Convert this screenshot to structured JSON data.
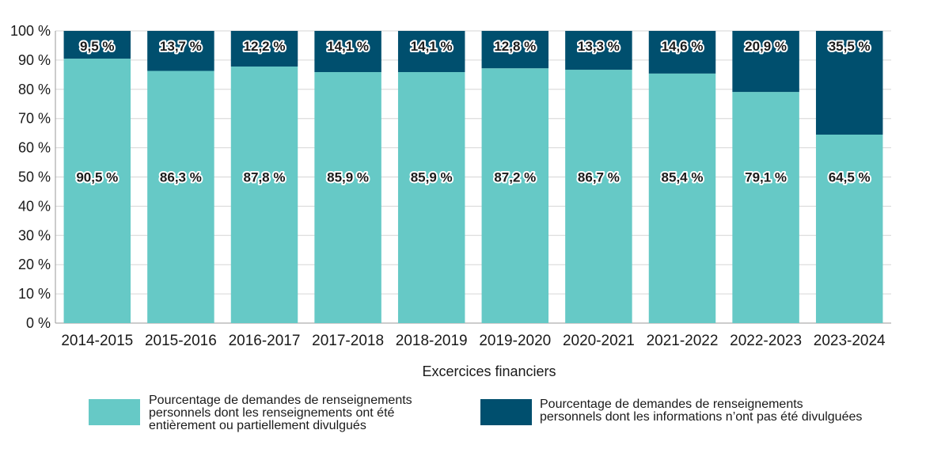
{
  "chart_data": {
    "type": "bar",
    "stacked": true,
    "title": "",
    "xlabel": "Excercices financiers",
    "ylabel": "",
    "ylim": [
      0,
      100
    ],
    "yticks": [
      "0 %",
      "10 %",
      "20 %",
      "30 %",
      "40 %",
      "50 %",
      "60 %",
      "70 %",
      "80 %",
      "90 %",
      "100 %"
    ],
    "categories": [
      "2014-2015",
      "2015-2016",
      "2016-2017",
      "2017-2018",
      "2018-2019",
      "2019-2020",
      "2020-2021",
      "2021-2022",
      "2022-2023",
      "2023-2024"
    ],
    "series": [
      {
        "name": "Pourcentage de demandes de renseignements personnels dont les renseignements ont été entièrement ou partiellement divulgués",
        "legend_lines": [
          "Pourcentage de demandes de renseignements",
          "personnels dont les renseignements ont été",
          "entièrement ou partiellement divulgués"
        ],
        "color": "#66c9c6",
        "values": [
          90.5,
          86.3,
          87.8,
          85.9,
          85.9,
          87.2,
          86.7,
          85.4,
          79.1,
          64.5
        ],
        "labels": [
          "90,5 %",
          "86,3 %",
          "87,8 %",
          "85,9 %",
          "85,9 %",
          "87,2 %",
          "86,7 %",
          "85,4 %",
          "79,1 %",
          "64,5 %"
        ]
      },
      {
        "name": "Pourcentage de demandes de renseignements personnels dont les informations n’ont pas été divulguées",
        "legend_lines": [
          "Pourcentage de demandes de renseignements",
          "personnels dont les informations n’ont pas été divulguées"
        ],
        "color": "#004f6e",
        "values": [
          9.5,
          13.7,
          12.2,
          14.1,
          14.1,
          12.8,
          13.3,
          14.6,
          20.9,
          35.5
        ],
        "labels": [
          "9,5 %",
          "13,7 %",
          "12,2 %",
          "14,1 %",
          "14,1 %",
          "12,8 %",
          "13,3 %",
          "14,6 %",
          "20,9 %",
          "35,5 %"
        ]
      }
    ],
    "grid": true,
    "legend_position": "bottom"
  }
}
